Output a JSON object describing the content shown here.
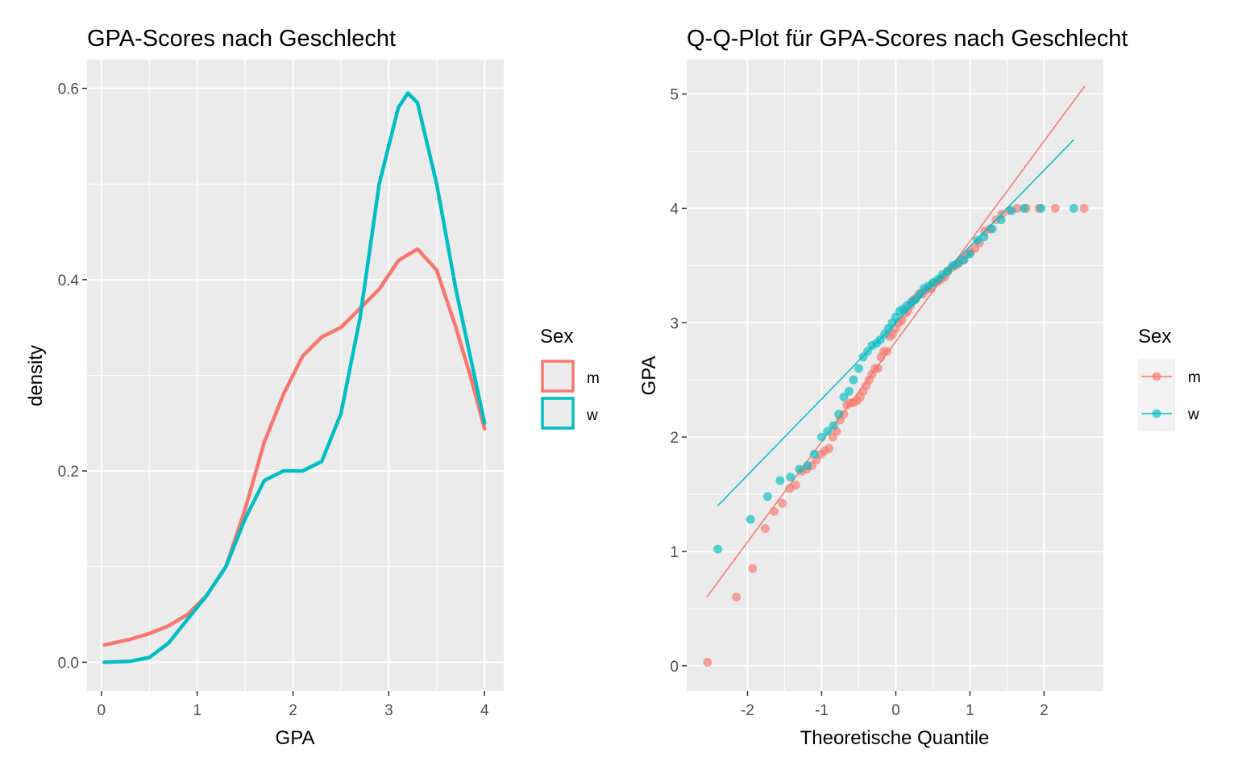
{
  "colors": {
    "m": "#F8766D",
    "w": "#00BFC4",
    "panel": "#EBEBEB",
    "grid": "#FFFFFF",
    "tick": "#333333"
  },
  "chart_data": [
    {
      "type": "line",
      "title": "GPA-Scores nach Geschlecht",
      "xlabel": "GPA",
      "ylabel": "density",
      "xlim": [
        -0.15,
        4.2
      ],
      "ylim": [
        -0.03,
        0.63
      ],
      "xticks": [
        0,
        1,
        2,
        3,
        4
      ],
      "xtick_labels": [
        "0",
        "1",
        "2",
        "3",
        "4"
      ],
      "yticks": [
        0,
        0.2,
        0.4,
        0.6
      ],
      "ytick_labels": [
        "0.0",
        "0.2",
        "0.4",
        "0.6"
      ],
      "grid": true,
      "legend": {
        "title": "Sex",
        "position": "right"
      },
      "series": [
        {
          "name": "m",
          "color": "#F8766D",
          "x": [
            0.03,
            0.3,
            0.5,
            0.7,
            0.9,
            1.1,
            1.3,
            1.5,
            1.7,
            1.9,
            2.1,
            2.3,
            2.5,
            2.7,
            2.9,
            3.1,
            3.3,
            3.5,
            3.7,
            3.85,
            4.0
          ],
          "y": [
            0.018,
            0.024,
            0.03,
            0.038,
            0.05,
            0.07,
            0.1,
            0.16,
            0.23,
            0.28,
            0.32,
            0.34,
            0.35,
            0.37,
            0.39,
            0.42,
            0.432,
            0.41,
            0.35,
            0.3,
            0.244
          ]
        },
        {
          "name": "w",
          "color": "#00BFC4",
          "x": [
            0.03,
            0.3,
            0.5,
            0.7,
            0.9,
            1.1,
            1.3,
            1.5,
            1.7,
            1.9,
            2.1,
            2.3,
            2.5,
            2.7,
            2.9,
            3.1,
            3.2,
            3.3,
            3.5,
            3.7,
            3.85,
            4.0
          ],
          "y": [
            0.0,
            0.001,
            0.005,
            0.02,
            0.045,
            0.07,
            0.1,
            0.15,
            0.19,
            0.2,
            0.2,
            0.21,
            0.26,
            0.36,
            0.5,
            0.58,
            0.595,
            0.585,
            0.5,
            0.39,
            0.32,
            0.25
          ]
        }
      ]
    },
    {
      "type": "scatter",
      "title": "Q-Q-Plot für GPA-Scores nach Geschlecht",
      "xlabel": "Theoretische Quantile",
      "ylabel": "GPA",
      "xlim": [
        -2.82,
        2.8
      ],
      "ylim": [
        -0.22,
        5.3
      ],
      "xticks": [
        -2,
        -1,
        0,
        1,
        2
      ],
      "xtick_labels": [
        "-2",
        "-1",
        "0",
        "1",
        "2"
      ],
      "yticks": [
        0,
        1,
        2,
        3,
        4,
        5
      ],
      "ytick_labels": [
        "0",
        "1",
        "2",
        "3",
        "4",
        "5"
      ],
      "grid": true,
      "legend": {
        "title": "Sex",
        "position": "right"
      },
      "series": [
        {
          "name": "m",
          "color": "#F8766D",
          "line": {
            "x": [
              -2.55,
              2.55
            ],
            "y": [
              0.6,
              5.07
            ]
          },
          "points": [
            [
              -2.54,
              0.03
            ],
            [
              -2.15,
              0.6
            ],
            [
              -1.93,
              0.85
            ],
            [
              -1.76,
              1.2
            ],
            [
              -1.64,
              1.35
            ],
            [
              -1.53,
              1.42
            ],
            [
              -1.43,
              1.55
            ],
            [
              -1.35,
              1.58
            ],
            [
              -1.27,
              1.7
            ],
            [
              -1.2,
              1.72
            ],
            [
              -1.13,
              1.75
            ],
            [
              -1.07,
              1.8
            ],
            [
              -1.01,
              1.85
            ],
            [
              -0.96,
              1.88
            ],
            [
              -0.9,
              1.9
            ],
            [
              -0.85,
              2.0
            ],
            [
              -0.8,
              2.05
            ],
            [
              -0.75,
              2.15
            ],
            [
              -0.7,
              2.2
            ],
            [
              -0.66,
              2.28
            ],
            [
              -0.61,
              2.3
            ],
            [
              -0.57,
              2.3
            ],
            [
              -0.52,
              2.32
            ],
            [
              -0.48,
              2.35
            ],
            [
              -0.44,
              2.4
            ],
            [
              -0.4,
              2.45
            ],
            [
              -0.36,
              2.5
            ],
            [
              -0.32,
              2.55
            ],
            [
              -0.28,
              2.6
            ],
            [
              -0.24,
              2.6
            ],
            [
              -0.2,
              2.7
            ],
            [
              -0.16,
              2.75
            ],
            [
              -0.12,
              2.75
            ],
            [
              -0.08,
              2.88
            ],
            [
              -0.04,
              2.9
            ],
            [
              0.0,
              2.95
            ],
            [
              0.04,
              3.0
            ],
            [
              0.08,
              3.02
            ],
            [
              0.12,
              3.08
            ],
            [
              0.16,
              3.1
            ],
            [
              0.2,
              3.15
            ],
            [
              0.24,
              3.2
            ],
            [
              0.28,
              3.22
            ],
            [
              0.32,
              3.25
            ],
            [
              0.36,
              3.25
            ],
            [
              0.4,
              3.28
            ],
            [
              0.44,
              3.3
            ],
            [
              0.48,
              3.3
            ],
            [
              0.52,
              3.35
            ],
            [
              0.57,
              3.36
            ],
            [
              0.61,
              3.38
            ],
            [
              0.66,
              3.4
            ],
            [
              0.7,
              3.45
            ],
            [
              0.75,
              3.48
            ],
            [
              0.8,
              3.5
            ],
            [
              0.85,
              3.52
            ],
            [
              0.9,
              3.55
            ],
            [
              0.96,
              3.6
            ],
            [
              1.01,
              3.62
            ],
            [
              1.07,
              3.65
            ],
            [
              1.13,
              3.7
            ],
            [
              1.2,
              3.8
            ],
            [
              1.27,
              3.82
            ],
            [
              1.35,
              3.9
            ],
            [
              1.43,
              3.95
            ],
            [
              1.53,
              3.98
            ],
            [
              1.64,
              4.0
            ],
            [
              1.76,
              4.0
            ],
            [
              1.93,
              4.0
            ],
            [
              2.15,
              4.0
            ],
            [
              2.54,
              4.0
            ]
          ]
        },
        {
          "name": "w",
          "color": "#00BFC4",
          "line": {
            "x": [
              -2.4,
              2.4
            ],
            "y": [
              1.4,
              4.6
            ]
          },
          "points": [
            [
              -2.4,
              1.02
            ],
            [
              -1.96,
              1.28
            ],
            [
              -1.73,
              1.48
            ],
            [
              -1.56,
              1.62
            ],
            [
              -1.42,
              1.65
            ],
            [
              -1.3,
              1.72
            ],
            [
              -1.19,
              1.75
            ],
            [
              -1.1,
              1.85
            ],
            [
              -1.0,
              2.0
            ],
            [
              -0.92,
              2.05
            ],
            [
              -0.84,
              2.1
            ],
            [
              -0.77,
              2.2
            ],
            [
              -0.7,
              2.35
            ],
            [
              -0.63,
              2.4
            ],
            [
              -0.57,
              2.5
            ],
            [
              -0.5,
              2.6
            ],
            [
              -0.44,
              2.7
            ],
            [
              -0.38,
              2.75
            ],
            [
              -0.32,
              2.8
            ],
            [
              -0.26,
              2.82
            ],
            [
              -0.21,
              2.85
            ],
            [
              -0.15,
              2.9
            ],
            [
              -0.1,
              2.95
            ],
            [
              -0.05,
              3.0
            ],
            [
              0.0,
              3.05
            ],
            [
              0.05,
              3.1
            ],
            [
              0.1,
              3.12
            ],
            [
              0.15,
              3.15
            ],
            [
              0.21,
              3.18
            ],
            [
              0.26,
              3.2
            ],
            [
              0.32,
              3.25
            ],
            [
              0.38,
              3.3
            ],
            [
              0.44,
              3.32
            ],
            [
              0.5,
              3.35
            ],
            [
              0.57,
              3.38
            ],
            [
              0.63,
              3.42
            ],
            [
              0.7,
              3.45
            ],
            [
              0.77,
              3.5
            ],
            [
              0.84,
              3.52
            ],
            [
              0.92,
              3.55
            ],
            [
              1.0,
              3.6
            ],
            [
              1.1,
              3.72
            ],
            [
              1.19,
              3.75
            ],
            [
              1.3,
              3.82
            ],
            [
              1.42,
              3.9
            ],
            [
              1.56,
              3.98
            ],
            [
              1.73,
              4.0
            ],
            [
              1.96,
              4.0
            ],
            [
              2.4,
              4.0
            ]
          ]
        }
      ]
    }
  ]
}
